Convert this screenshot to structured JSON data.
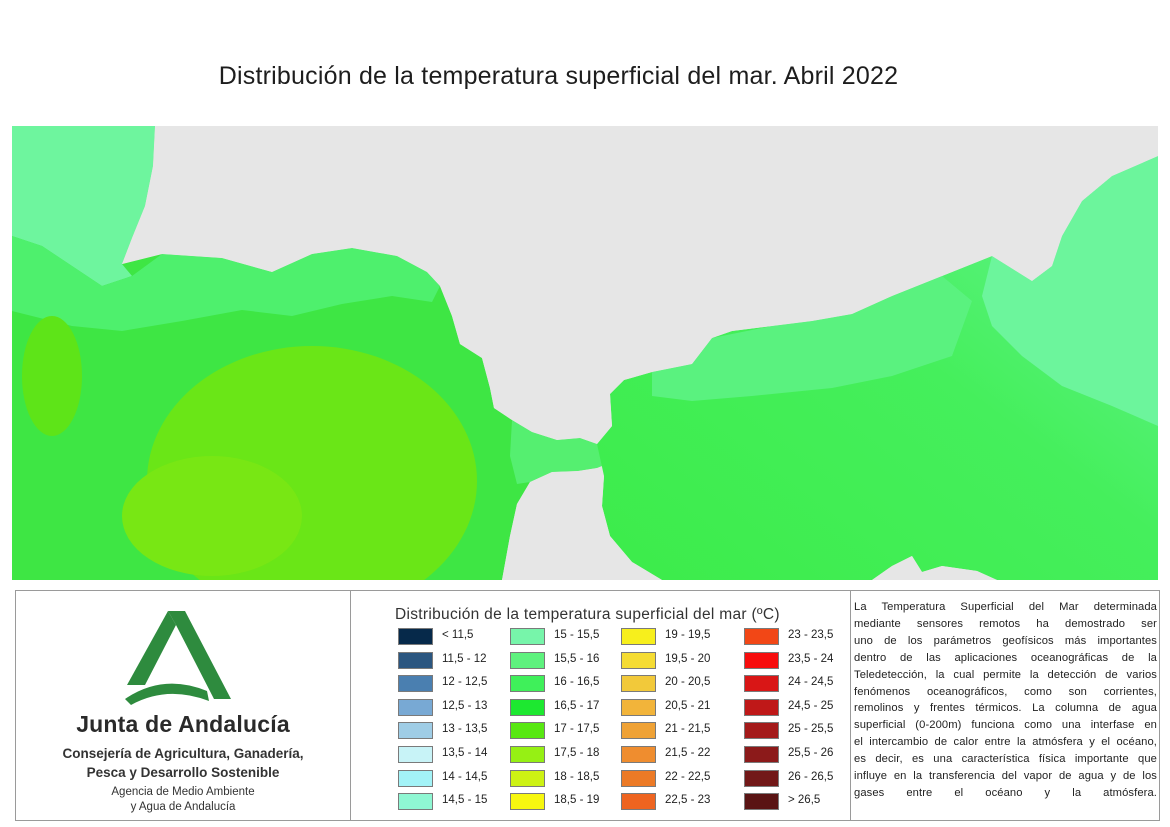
{
  "title": "Distribución de la temperatura superficial del mar. Abril 2022",
  "map": {
    "land_color": "#e6e6e6",
    "background_color": "#ffffff"
  },
  "logo": {
    "icon": "junta-de-andalucia-logo-icon",
    "color": "#2e8b3e",
    "org_name": "Junta de Andalucía",
    "department_line1": "Consejería de Agricultura, Ganadería,",
    "department_line2": "Pesca y Desarrollo Sostenible",
    "agency_line1": "Agencia de Medio Ambiente",
    "agency_line2": "y Agua de Andalucía"
  },
  "legend": {
    "title": "Distribución de la temperatura superficial del mar (ºC)",
    "columns": [
      [
        {
          "label": "< 11,5",
          "color": "#06294a"
        },
        {
          "label": "11,5 - 12",
          "color": "#2b5680"
        },
        {
          "label": "12 - 12,5",
          "color": "#4a7fb0"
        },
        {
          "label": "12,5 - 13",
          "color": "#78a9d4"
        },
        {
          "label": "13 - 13,5",
          "color": "#9fcde6"
        },
        {
          "label": "13,5 - 14",
          "color": "#c8f3f7"
        },
        {
          "label": "14 - 14,5",
          "color": "#a3f3f7"
        },
        {
          "label": "14,5 - 15",
          "color": "#8ff7d3"
        }
      ],
      [
        {
          "label": "15 - 15,5",
          "color": "#77f5aa"
        },
        {
          "label": "15,5 - 16",
          "color": "#5ef27e"
        },
        {
          "label": "16 - 16,5",
          "color": "#3ff05a"
        },
        {
          "label": "16,5 - 17",
          "color": "#1de830"
        },
        {
          "label": "17 - 17,5",
          "color": "#58e812"
        },
        {
          "label": "17,5 - 18",
          "color": "#96f014"
        },
        {
          "label": "18 - 18,5",
          "color": "#cdf214"
        },
        {
          "label": "18,5 - 19",
          "color": "#f7f70f"
        }
      ],
      [
        {
          "label": "19 - 19,5",
          "color": "#f7ef1c"
        },
        {
          "label": "19,5 - 20",
          "color": "#f5dc33"
        },
        {
          "label": "20 - 20,5",
          "color": "#f2c93a"
        },
        {
          "label": "20,5 - 21",
          "color": "#f2b43a"
        },
        {
          "label": "21 - 21,5",
          "color": "#efa236"
        },
        {
          "label": "21,5 - 22",
          "color": "#ef8d2f"
        },
        {
          "label": "22 - 22,5",
          "color": "#ec7a26"
        },
        {
          "label": "22,5 - 23",
          "color": "#ee6420"
        }
      ],
      [
        {
          "label": "23 - 23,5",
          "color": "#f24716"
        },
        {
          "label": "23,5 - 24",
          "color": "#f70d0d"
        },
        {
          "label": "24 - 24,5",
          "color": "#d91616"
        },
        {
          "label": "24,5 - 25",
          "color": "#bf1818"
        },
        {
          "label": "25 - 25,5",
          "color": "#a41a1a"
        },
        {
          "label": "25,5 - 26",
          "color": "#8c1a1a"
        },
        {
          "label": "26 - 26,5",
          "color": "#721818"
        },
        {
          "label": "> 26,5",
          "color": "#5a1414"
        }
      ]
    ]
  },
  "description_lines": [
    "La Temperatura Superficial del Mar determinada",
    "mediante sensores remotos ha demostrado ser",
    "uno de los parámetros geofísicos más importantes",
    "dentro de las aplicaciones oceanográficas de la",
    "Teledetección, la cual permite la detección de varios",
    "fenómenos oceanográficos, como son corrientes,",
    "remolinos y frentes térmicos. La columna de agua",
    "superficial (0-200m) funciona como una interfase en",
    "el intercambio de calor entre la atmósfera y el océano,",
    "es decir, es una característica física importante que",
    "influye en la transferencia del vapor de agua y de los",
    "gases entre el océano y la atmósfera."
  ]
}
